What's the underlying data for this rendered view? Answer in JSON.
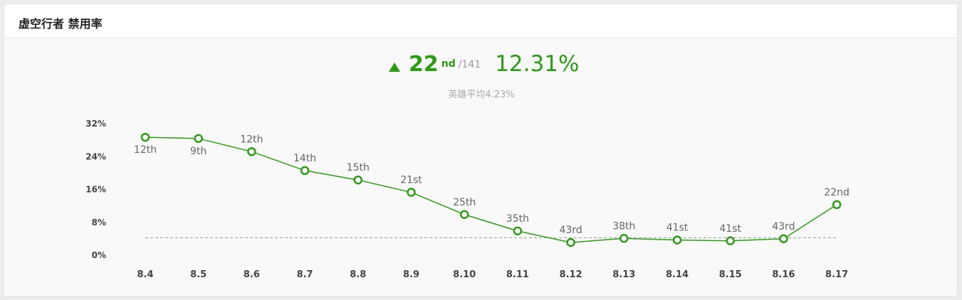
{
  "header": {
    "title": "虚空行者 禁用率"
  },
  "summary": {
    "trend_icon": "up-triangle-icon",
    "rank": "22",
    "rank_suffix": "nd",
    "rank_total": "/141",
    "rate": "12.31%",
    "average_label": "英雄平均4.23%"
  },
  "colors": {
    "accent": "#2a9d12",
    "average_line": "#999999"
  },
  "chart_data": {
    "type": "line",
    "title": "",
    "xlabel": "",
    "ylabel": "",
    "ylim": [
      0,
      32
    ],
    "yticks": [
      "0%",
      "8%",
      "16%",
      "24%",
      "32%"
    ],
    "ytick_values": [
      0,
      8,
      16,
      24,
      32
    ],
    "categories": [
      "8.4",
      "8.5",
      "8.6",
      "8.7",
      "8.8",
      "8.9",
      "8.10",
      "8.11",
      "8.12",
      "8.13",
      "8.14",
      "8.15",
      "8.16",
      "8.17"
    ],
    "series": [
      {
        "values": [
          28.7,
          28.4,
          25.2,
          20.6,
          18.3,
          15.3,
          9.9,
          5.9,
          3.1,
          4.1,
          3.7,
          3.5,
          4.0,
          12.31
        ],
        "labels": [
          "12th",
          "9th",
          "12th",
          "14th",
          "15th",
          "21st",
          "25th",
          "35th",
          "43rd",
          "38th",
          "41st",
          "41st",
          "43rd",
          "22nd"
        ]
      }
    ],
    "reference_line": 4.23,
    "grid": false
  }
}
